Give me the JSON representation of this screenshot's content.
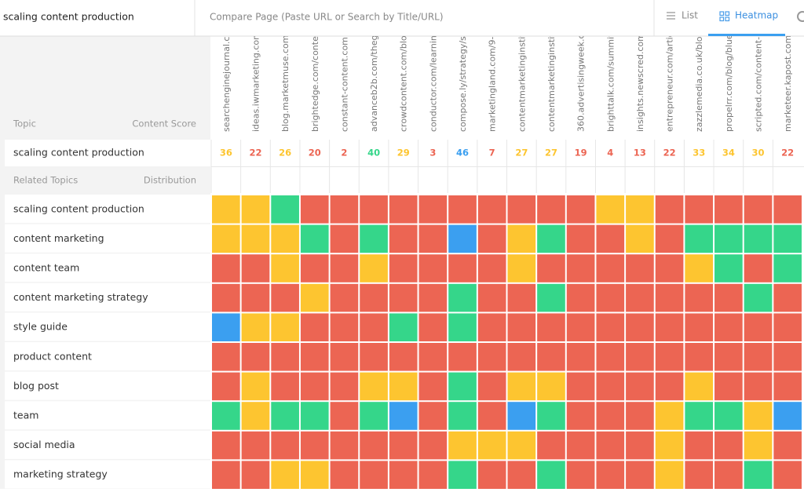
{
  "search": {
    "query": "scaling content production",
    "compare_placeholder": "Compare Page (Paste URL or Search by Title/URL)"
  },
  "tabs": [
    "List",
    "Heatmap"
  ],
  "table": {
    "topic_header": "Topic",
    "score_header": "Content Score",
    "main_topic": "scaling content production",
    "related_header": "Related Topics",
    "distribution_header": "Distribution",
    "palette": {
      "R": "#ec6553",
      "Y": "#fdc530",
      "G": "#35d68a",
      "B": "#3b9ff0"
    },
    "columns": [
      "searchenginejournal.co",
      "ideas.iwmarketing.com",
      "blog.marketmuse.com/",
      "brightedge.com/conte",
      "constant-content.com",
      "advanceb2b.com/theg",
      "crowdcontent.com/blo",
      "conductor.com/learnin",
      "compose.ly/strategy/s",
      "marketingland.com/9-",
      "contentmarketinginstit",
      "contentmarketinginstit",
      "360.advertisingweek.c",
      "brighttalk.com/summit",
      "insights.newscred.com",
      "entrepreneur.com/artic",
      "zazzlemedia.co.uk/blo",
      "propelrr.com/blog/blue",
      "scripted.com/content-",
      "marketeer.kapost.com"
    ],
    "scores": [
      36,
      22,
      26,
      20,
      2,
      40,
      29,
      3,
      46,
      7,
      27,
      27,
      19,
      4,
      13,
      22,
      33,
      34,
      30,
      22
    ],
    "rows": [
      {
        "topic": "scaling content production",
        "cells": [
          "Y",
          "Y",
          "G",
          "R",
          "R",
          "R",
          "R",
          "R",
          "R",
          "R",
          "R",
          "R",
          "R",
          "Y",
          "Y",
          "R",
          "R",
          "R",
          "R",
          "R"
        ]
      },
      {
        "topic": "content marketing",
        "cells": [
          "Y",
          "Y",
          "Y",
          "G",
          "R",
          "G",
          "R",
          "R",
          "B",
          "R",
          "Y",
          "G",
          "R",
          "R",
          "Y",
          "R",
          "G",
          "G",
          "G",
          "G"
        ]
      },
      {
        "topic": "content team",
        "cells": [
          "R",
          "R",
          "Y",
          "R",
          "R",
          "Y",
          "R",
          "R",
          "R",
          "R",
          "Y",
          "R",
          "R",
          "R",
          "R",
          "R",
          "Y",
          "G",
          "R",
          "G"
        ]
      },
      {
        "topic": "content marketing strategy",
        "cells": [
          "R",
          "R",
          "R",
          "Y",
          "R",
          "R",
          "R",
          "R",
          "G",
          "R",
          "R",
          "G",
          "R",
          "R",
          "R",
          "R",
          "R",
          "R",
          "G",
          "R"
        ]
      },
      {
        "topic": "style guide",
        "cells": [
          "B",
          "Y",
          "Y",
          "R",
          "R",
          "R",
          "G",
          "R",
          "G",
          "R",
          "R",
          "R",
          "R",
          "R",
          "R",
          "R",
          "R",
          "R",
          "R",
          "R"
        ]
      },
      {
        "topic": "product content",
        "cells": [
          "R",
          "R",
          "R",
          "R",
          "R",
          "R",
          "R",
          "R",
          "R",
          "R",
          "R",
          "R",
          "R",
          "R",
          "R",
          "R",
          "R",
          "R",
          "R",
          "R"
        ]
      },
      {
        "topic": "blog post",
        "cells": [
          "R",
          "Y",
          "R",
          "R",
          "R",
          "Y",
          "Y",
          "R",
          "G",
          "R",
          "Y",
          "Y",
          "R",
          "R",
          "R",
          "R",
          "Y",
          "R",
          "R",
          "R"
        ]
      },
      {
        "topic": "team",
        "cells": [
          "G",
          "Y",
          "G",
          "G",
          "R",
          "G",
          "B",
          "R",
          "G",
          "R",
          "B",
          "G",
          "R",
          "R",
          "R",
          "Y",
          "G",
          "G",
          "Y",
          "B"
        ]
      },
      {
        "topic": "social media",
        "cells": [
          "R",
          "R",
          "R",
          "R",
          "R",
          "R",
          "R",
          "R",
          "Y",
          "Y",
          "Y",
          "R",
          "R",
          "R",
          "R",
          "Y",
          "R",
          "R",
          "Y",
          "R"
        ]
      },
      {
        "topic": "marketing strategy",
        "cells": [
          "R",
          "R",
          "Y",
          "Y",
          "R",
          "R",
          "R",
          "R",
          "G",
          "R",
          "R",
          "G",
          "R",
          "R",
          "R",
          "Y",
          "R",
          "R",
          "G",
          "R"
        ]
      }
    ]
  }
}
